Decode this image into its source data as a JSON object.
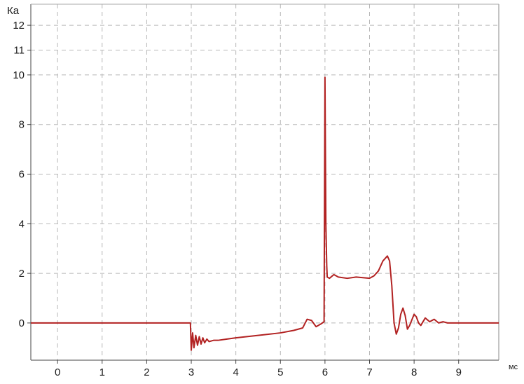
{
  "chart_data": {
    "type": "line",
    "title": "",
    "xlabel": "мс",
    "ylabel": "Ка",
    "xlim": [
      -0.6,
      9.9
    ],
    "ylim": [
      -1.5,
      12.85
    ],
    "x_ticks": [
      0,
      1,
      2,
      3,
      4,
      5,
      6,
      7,
      8,
      9
    ],
    "x_tick_labels": [
      "0",
      "1",
      "2",
      "3",
      "4",
      "5",
      "6",
      "7",
      "8",
      "9"
    ],
    "y_ticks": [
      0,
      2,
      4,
      6,
      8,
      10,
      11,
      12
    ],
    "y_tick_labels": [
      "0",
      "2",
      "4",
      "6",
      "8",
      "10",
      "11",
      "12"
    ],
    "grid": true,
    "grid_style": "dashed",
    "legend": "none",
    "series": [
      {
        "color": "#b22222",
        "x": [
          -0.6,
          2.98,
          3.0,
          3.03,
          3.06,
          3.1,
          3.14,
          3.18,
          3.22,
          3.26,
          3.3,
          3.35,
          3.4,
          3.5,
          3.6,
          3.8,
          4.0,
          4.5,
          5.0,
          5.3,
          5.5,
          5.6,
          5.7,
          5.8,
          5.9,
          5.98,
          6.0,
          6.02,
          6.04,
          6.05,
          6.1,
          6.2,
          6.3,
          6.5,
          6.7,
          7.0,
          7.1,
          7.2,
          7.3,
          7.4,
          7.45,
          7.5,
          7.55,
          7.6,
          7.65,
          7.7,
          7.75,
          7.8,
          7.85,
          7.9,
          8.0,
          8.05,
          8.1,
          8.15,
          8.25,
          8.35,
          8.45,
          8.55,
          8.65,
          8.75,
          9.0,
          9.9
        ],
        "y": [
          0,
          0,
          -1.1,
          -0.4,
          -1.0,
          -0.5,
          -0.9,
          -0.55,
          -0.85,
          -0.6,
          -0.8,
          -0.65,
          -0.75,
          -0.7,
          -0.7,
          -0.65,
          -0.6,
          -0.5,
          -0.4,
          -0.3,
          -0.2,
          0.15,
          0.1,
          -0.15,
          -0.05,
          0.05,
          9.9,
          4.0,
          2.3,
          1.85,
          1.8,
          1.95,
          1.85,
          1.8,
          1.85,
          1.8,
          1.9,
          2.1,
          2.5,
          2.7,
          2.5,
          1.5,
          0.0,
          -0.45,
          -0.2,
          0.35,
          0.6,
          0.3,
          -0.25,
          -0.1,
          0.35,
          0.25,
          0.0,
          -0.1,
          0.2,
          0.05,
          0.15,
          0.0,
          0.05,
          0.0,
          0.0,
          0.0
        ]
      }
    ]
  }
}
